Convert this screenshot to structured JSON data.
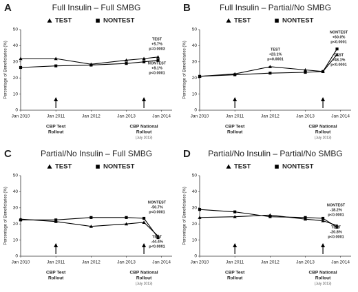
{
  "chart_data": [
    {
      "type": "line",
      "panel": "A",
      "title": "Full Insulin – Full SMBG",
      "ylabel": "Percentage of Beneficiaries (%)",
      "x": [
        2010,
        2011,
        2012,
        2013,
        2013.5,
        2013.9
      ],
      "series": [
        {
          "name": "TEST",
          "marker": "triangle",
          "color": "#000",
          "values": [
            32,
            32,
            28.5,
            31,
            32,
            33
          ]
        },
        {
          "name": "NONTEST",
          "marker": "square",
          "color": "#000",
          "values": [
            26.5,
            27.5,
            28,
            29,
            30,
            31
          ]
        }
      ],
      "xlim": [
        2010,
        2014.3
      ],
      "xticks": [
        {
          "value": 2010,
          "label": "Jan 2010"
        },
        {
          "value": 2011,
          "label": "Jan 2011"
        },
        {
          "value": 2012,
          "label": "Jan 2012"
        },
        {
          "value": 2013,
          "label": "Jan 2013"
        },
        {
          "value": 2014,
          "label": "Jan 2014"
        }
      ],
      "ylim": [
        0,
        50
      ],
      "yticks": [
        0,
        10,
        20,
        30,
        40,
        50
      ],
      "annotations": [
        [
          "TEST",
          "+5.7%",
          "p=0.0003"
        ],
        [
          "NONTEST",
          "+8.1%",
          "p<0.0001"
        ]
      ],
      "events": [
        {
          "x": 2011,
          "label": [
            "CBP Test",
            "Rollout"
          ]
        },
        {
          "x": 2013.5,
          "label": [
            "CBP National",
            "Rollout"
          ],
          "note": "(July 2013)"
        }
      ]
    },
    {
      "type": "line",
      "panel": "B",
      "title": "Full Insulin – Partial/No SMBG",
      "ylabel": "Percentage of Beneficiaries (%)",
      "x": [
        2010,
        2011,
        2012,
        2013,
        2013.5,
        2013.9
      ],
      "series": [
        {
          "name": "TEST",
          "marker": "triangle",
          "color": "#000",
          "values": [
            21,
            22.5,
            27,
            25,
            24,
            34.5
          ]
        },
        {
          "name": "NONTEST",
          "marker": "square",
          "color": "#000",
          "values": [
            21,
            22,
            23,
            23.5,
            24,
            38
          ]
        }
      ],
      "xlim": [
        2010,
        2014.3
      ],
      "xticks": [
        {
          "value": 2010,
          "label": "Jan 2010"
        },
        {
          "value": 2011,
          "label": "Jan 2011"
        },
        {
          "value": 2012,
          "label": "Jan 2012"
        },
        {
          "value": 2013,
          "label": "Jan 2013"
        },
        {
          "value": 2014,
          "label": "Jan 2014"
        }
      ],
      "ylim": [
        0,
        50
      ],
      "yticks": [
        0,
        10,
        20,
        30,
        40,
        50
      ],
      "annotations": [
        [
          "TEST",
          "+23.1%",
          "p<0.0001"
        ],
        [
          "NONTEST",
          "+60.0%",
          "p<0.0001"
        ],
        [
          "TEST",
          "+48.1%",
          "p<0.0001"
        ]
      ],
      "events": [
        {
          "x": 2011,
          "label": [
            "CBP Test",
            "Rollout"
          ]
        },
        {
          "x": 2013.5,
          "label": [
            "CBP National",
            "Rollout"
          ],
          "note": "(July 2013)"
        }
      ]
    },
    {
      "type": "line",
      "panel": "C",
      "title": "Partial/No Insulin – Full SMBG",
      "ylabel": "Percentage of Beneficiaries (%)",
      "x": [
        2010,
        2011,
        2012,
        2013,
        2013.5,
        2013.9
      ],
      "series": [
        {
          "name": "TEST",
          "marker": "triangle",
          "color": "#000",
          "values": [
            23,
            21.5,
            18.5,
            20,
            21,
            12.5
          ]
        },
        {
          "name": "NONTEST",
          "marker": "square",
          "color": "#000",
          "values": [
            22.5,
            22.5,
            24,
            24,
            23.5,
            11.5
          ]
        }
      ],
      "xlim": [
        2010,
        2014.3
      ],
      "xticks": [
        {
          "value": 2010,
          "label": "Jan 2010"
        },
        {
          "value": 2011,
          "label": "Jan 2011"
        },
        {
          "value": 2012,
          "label": "Jan 2012"
        },
        {
          "value": 2013,
          "label": "Jan 2013"
        },
        {
          "value": 2014,
          "label": "Jan 2014"
        }
      ],
      "ylim": [
        0,
        50
      ],
      "yticks": [
        0,
        10,
        20,
        30,
        40,
        50
      ],
      "annotations": [
        [
          "NONTEST",
          "-50.7%",
          "p<0.0001"
        ],
        [
          "TEST",
          "-44.4%",
          "p<0.0001"
        ]
      ],
      "events": [
        {
          "x": 2011,
          "label": [
            "CBP Test",
            "Rollout"
          ]
        },
        {
          "x": 2013.5,
          "label": [
            "CBP National",
            "Rollout"
          ],
          "note": "(July 2013)"
        }
      ]
    },
    {
      "type": "line",
      "panel": "D",
      "title": "Partial/No Insulin – Partial/No SMBG",
      "ylabel": "Percentage of Beneficiaries (%)",
      "x": [
        2010,
        2011,
        2012,
        2013,
        2013.5,
        2013.9
      ],
      "series": [
        {
          "name": "TEST",
          "marker": "triangle",
          "color": "#000",
          "values": [
            24,
            24.5,
            25.5,
            23,
            22,
            19
          ]
        },
        {
          "name": "NONTEST",
          "marker": "square",
          "color": "#000",
          "values": [
            29,
            27.5,
            24.5,
            24,
            23.5,
            18
          ]
        }
      ],
      "xlim": [
        2010,
        2014.3
      ],
      "xticks": [
        {
          "value": 2010,
          "label": "Jan 2010"
        },
        {
          "value": 2011,
          "label": "Jan 2011"
        },
        {
          "value": 2012,
          "label": "Jan 2012"
        },
        {
          "value": 2013,
          "label": "Jan 2013"
        },
        {
          "value": 2014,
          "label": "Jan 2014"
        }
      ],
      "ylim": [
        0,
        50
      ],
      "yticks": [
        0,
        10,
        20,
        30,
        40,
        50
      ],
      "annotations": [
        [
          "NONTEST",
          "-18.2%",
          "p<0.0001"
        ],
        [
          "TEST",
          "-20.8%",
          "p<0.0001"
        ]
      ],
      "events": [
        {
          "x": 2011,
          "label": [
            "CBP Test",
            "Rollout"
          ]
        },
        {
          "x": 2013.5,
          "label": [
            "CBP National",
            "Rollout"
          ],
          "note": "(July 2013)"
        }
      ]
    }
  ]
}
